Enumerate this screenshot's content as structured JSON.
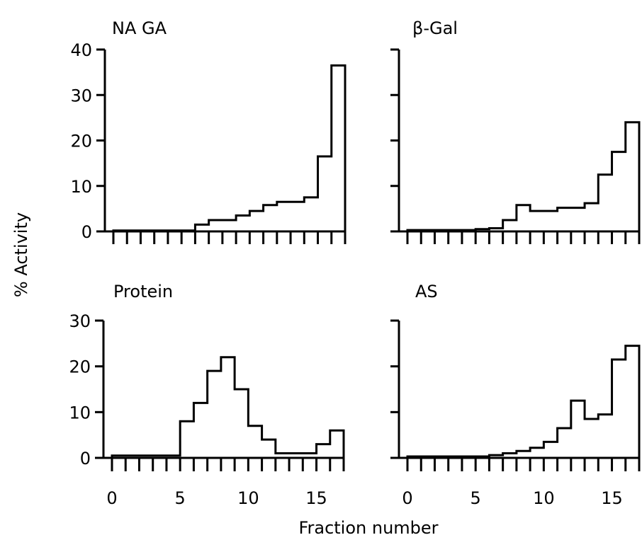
{
  "figure": {
    "ylabel": "% Activity",
    "xlabel": "Fraction number"
  },
  "chart_data": [
    {
      "type": "bar",
      "title": "NA GA",
      "xlim": [
        0,
        17
      ],
      "ylim": [
        0,
        40
      ],
      "y_ticks": [
        0,
        10,
        20,
        30,
        40
      ],
      "x_ticks": [],
      "bin_width": 1,
      "x": [
        0,
        1,
        2,
        3,
        4,
        5,
        6,
        7,
        8,
        9,
        10,
        11,
        12,
        13,
        14,
        15,
        16
      ],
      "values": [
        0.2,
        0.2,
        0.2,
        0.2,
        0.2,
        0.2,
        1.5,
        2.5,
        2.5,
        3.5,
        4.5,
        5.8,
        6.5,
        6.5,
        7.5,
        16.5,
        36.5
      ]
    },
    {
      "type": "bar",
      "title": "β-Gal",
      "xlim": [
        0,
        17
      ],
      "ylim": [
        0,
        40
      ],
      "y_ticks": [
        0,
        10,
        20,
        30,
        40
      ],
      "y_tick_labels_shown": false,
      "x_ticks": [],
      "bin_width": 1,
      "x": [
        0,
        1,
        2,
        3,
        4,
        5,
        6,
        7,
        8,
        9,
        10,
        11,
        12,
        13,
        14,
        15,
        16
      ],
      "values": [
        0.3,
        0.3,
        0.3,
        0.3,
        0.3,
        0.5,
        0.7,
        2.5,
        5.8,
        4.5,
        4.5,
        5.2,
        5.2,
        6.2,
        12.5,
        17.5,
        24.0
      ]
    },
    {
      "type": "bar",
      "title": "Protein",
      "xlim": [
        0,
        17
      ],
      "ylim": [
        0,
        30
      ],
      "y_ticks": [
        0,
        10,
        20,
        30
      ],
      "x_ticks": [
        0,
        5,
        10,
        15
      ],
      "bin_width": 1,
      "x": [
        0,
        1,
        2,
        3,
        4,
        5,
        6,
        7,
        8,
        9,
        10,
        11,
        12,
        13,
        14,
        15,
        16
      ],
      "values": [
        0.5,
        0.5,
        0.5,
        0.5,
        0.5,
        8.0,
        12.0,
        19.0,
        22.0,
        15.0,
        7.0,
        4.0,
        1.0,
        1.0,
        1.0,
        3.0,
        6.0
      ]
    },
    {
      "type": "bar",
      "title": "AS",
      "xlim": [
        0,
        17
      ],
      "ylim": [
        0,
        30
      ],
      "y_ticks": [
        0,
        10,
        20,
        30
      ],
      "y_tick_labels_shown": false,
      "x_ticks": [
        0,
        5,
        10,
        15
      ],
      "bin_width": 1,
      "x": [
        0,
        1,
        2,
        3,
        4,
        5,
        6,
        7,
        8,
        9,
        10,
        11,
        12,
        13,
        14,
        15,
        16
      ],
      "values": [
        0.3,
        0.3,
        0.3,
        0.3,
        0.3,
        0.3,
        0.6,
        1.0,
        1.5,
        2.2,
        3.5,
        6.5,
        12.5,
        8.5,
        9.5,
        21.5,
        24.5
      ]
    }
  ]
}
